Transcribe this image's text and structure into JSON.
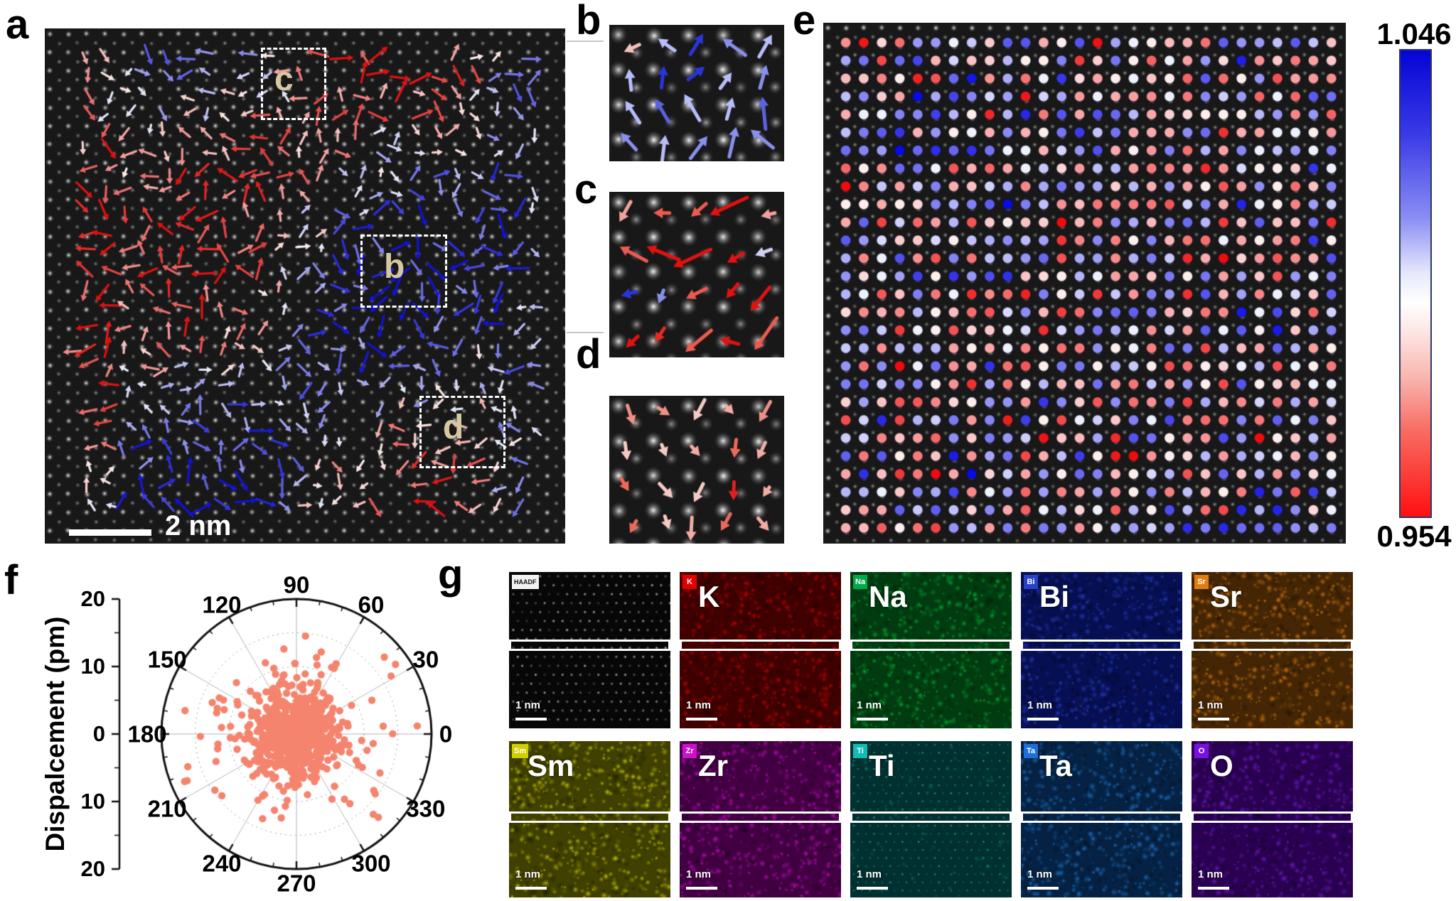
{
  "figure": {
    "description": "Atomic-scale STEM displacement-vector and EDS elemental mapping figure",
    "background_color": "#ffffff"
  },
  "panels": {
    "a": {
      "label": "a",
      "scale_bar_label": "2 nm",
      "inset_boxes": [
        {
          "label": "c"
        },
        {
          "label": "b"
        },
        {
          "label": "d"
        }
      ],
      "arrow_palette": {
        "red": "#e01010",
        "blue": "#1212d8",
        "pale_red": "#f8e4e0",
        "pale_blue": "#e4e6f8"
      }
    },
    "b": {
      "label": "b",
      "arrows": {
        "base_angle_deg": 90,
        "spread_deg": 55,
        "palette": [
          "#2a35d8",
          "#5a64e0",
          "#8890ec",
          "#b8befa"
        ],
        "accent": "#f4c2bc",
        "len_range": [
          26,
          46
        ]
      }
    },
    "c": {
      "label": "c",
      "arrows": {
        "base_angle_deg": 200,
        "spread_deg": 48,
        "palette": [
          "#e01212",
          "#e82a22",
          "#ee5a50",
          "#f2a09a"
        ],
        "accent": "#2a35d8",
        "len_range": [
          20,
          56
        ]
      }
    },
    "d": {
      "label": "d",
      "arrows": {
        "base_angle_deg": 278,
        "spread_deg": 52,
        "palette": [
          "#f6cac4",
          "#f2aca4",
          "#ee9086",
          "#ea6a5c"
        ],
        "accent": "#e02020",
        "len_range": [
          16,
          34
        ]
      }
    },
    "e": {
      "label": "e",
      "colorbar": {
        "max_label": "1.046",
        "min_label": "0.954",
        "top_color": "#0404d6",
        "mid_color": "#ffffff",
        "bottom_color": "#ff1010",
        "border_color": "#2a3a66"
      },
      "dot_extreme_blue": "#0a0ae6",
      "dot_extreme_red": "#ee0c0c"
    },
    "f": {
      "label": "f"
    },
    "g": {
      "label": "g",
      "scale_bar_label": "1 nm",
      "cells": [
        [
          {
            "tag": "HAADF",
            "big": "",
            "kind": "haadf",
            "tag_bg": "#f2f2f2",
            "tag_color": "#111111",
            "base": "#070707",
            "blob": "#ffffff"
          },
          {
            "tag": "K",
            "big": "K",
            "kind": "eds",
            "tag_bg": "#e00000",
            "tag_color": "#ffffff",
            "base": "#3f0000",
            "blob": "#e00000"
          },
          {
            "tag": "Na",
            "big": "Na",
            "kind": "eds",
            "tag_bg": "#00a84a",
            "tag_color": "#ffffff",
            "base": "#003c10",
            "blob": "#00c83c"
          },
          {
            "tag": "Bi",
            "big": "Bi",
            "kind": "eds",
            "tag_bg": "#2742c8",
            "tag_color": "#ffffff",
            "base": "#060f52",
            "blob": "#2742ee"
          },
          {
            "tag": "Sr",
            "big": "Sr",
            "kind": "eds",
            "tag_bg": "#e07d10",
            "tag_color": "#ffffff",
            "base": "#452604",
            "blob": "#f08810"
          }
        ],
        [
          {
            "tag": "Sm",
            "big": "Sm",
            "kind": "eds",
            "tag_bg": "#cfcf00",
            "tag_color": "#ffffff",
            "base": "#404000",
            "blob": "#e0e000"
          },
          {
            "tag": "Zr",
            "big": "Zr",
            "kind": "eds",
            "tag_bg": "#cc10cc",
            "tag_color": "#ffffff",
            "base": "#420042",
            "blob": "#e20ce2"
          },
          {
            "tag": "Ti",
            "big": "Ti",
            "kind": "ti",
            "tag_bg": "#10bdb4",
            "tag_color": "#ffffff",
            "base": "#013030",
            "blob": "#17e6d8"
          },
          {
            "tag": "Ta",
            "big": "Ta",
            "kind": "eds",
            "tag_bg": "#1a6fd8",
            "tag_color": "#ffffff",
            "base": "#052244",
            "blob": "#1e82e8"
          },
          {
            "tag": "O",
            "big": "O",
            "kind": "eds",
            "tag_bg": "#7a10e0",
            "tag_color": "#ffffff",
            "base": "#2a0052",
            "blob": "#8418f0"
          }
        ]
      ]
    }
  },
  "chart_data": {
    "type": "scatter",
    "coordinate_system": "polar",
    "title": "",
    "radial_axis_label": "Dispalcement (pm)",
    "radial_axis_units": "pm",
    "radial_range": [
      0,
      20
    ],
    "radial_tick_labels": [
      "20",
      "10",
      "0",
      "10",
      "20"
    ],
    "radial_gridline_radii_pm": [
      5,
      10,
      15
    ],
    "angular_tick_labels_deg": [
      0,
      30,
      60,
      90,
      120,
      150,
      180,
      210,
      240,
      270,
      300,
      330
    ],
    "marker_color": "#f5846e",
    "approx_point_count": 900,
    "distribution_summary": {
      "shape": "isotropic cluster centered at origin",
      "typical_radius_pm": "0-8",
      "max_observed_radius_pm": 18
    },
    "grid": true,
    "legend": false
  }
}
